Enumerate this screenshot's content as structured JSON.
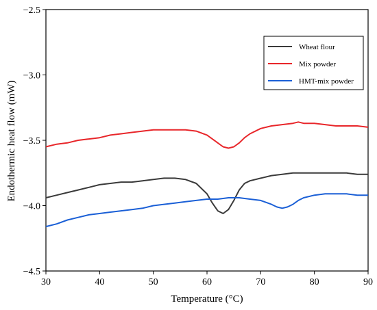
{
  "chart_data": {
    "type": "line",
    "title": "",
    "xlabel": "Temperature (°C)",
    "ylabel": "Endothermic heat flow (mW)",
    "xlim": [
      30,
      90
    ],
    "ylim": [
      -4.5,
      -2.5
    ],
    "xticks": [
      30,
      40,
      50,
      60,
      70,
      80,
      90
    ],
    "yticks": [
      -4.5,
      -4.0,
      -3.5,
      -3.0,
      -2.5
    ],
    "xtick_labels": [
      "30",
      "40",
      "50",
      "60",
      "70",
      "80",
      "90"
    ],
    "ytick_labels": [
      "−4.5",
      "−4.0",
      "−3.5",
      "−3.0",
      "−2.5"
    ],
    "grid": false,
    "legend_position": "top-right",
    "series": [
      {
        "name": "Wheat flour",
        "color": "#3a3a3a",
        "points": [
          [
            30,
            -3.94
          ],
          [
            32,
            -3.92
          ],
          [
            34,
            -3.9
          ],
          [
            36,
            -3.88
          ],
          [
            38,
            -3.86
          ],
          [
            40,
            -3.84
          ],
          [
            42,
            -3.83
          ],
          [
            44,
            -3.82
          ],
          [
            46,
            -3.82
          ],
          [
            48,
            -3.81
          ],
          [
            50,
            -3.8
          ],
          [
            52,
            -3.79
          ],
          [
            54,
            -3.79
          ],
          [
            56,
            -3.8
          ],
          [
            58,
            -3.83
          ],
          [
            60,
            -3.91
          ],
          [
            61,
            -3.98
          ],
          [
            62,
            -4.04
          ],
          [
            63,
            -4.06
          ],
          [
            64,
            -4.03
          ],
          [
            65,
            -3.96
          ],
          [
            66,
            -3.88
          ],
          [
            67,
            -3.83
          ],
          [
            68,
            -3.81
          ],
          [
            70,
            -3.79
          ],
          [
            72,
            -3.77
          ],
          [
            74,
            -3.76
          ],
          [
            76,
            -3.75
          ],
          [
            78,
            -3.75
          ],
          [
            80,
            -3.75
          ],
          [
            82,
            -3.75
          ],
          [
            84,
            -3.75
          ],
          [
            86,
            -3.75
          ],
          [
            88,
            -3.76
          ],
          [
            90,
            -3.76
          ]
        ]
      },
      {
        "name": "Mix powder",
        "color": "#e8262a",
        "points": [
          [
            30,
            -3.55
          ],
          [
            32,
            -3.53
          ],
          [
            34,
            -3.52
          ],
          [
            36,
            -3.5
          ],
          [
            38,
            -3.49
          ],
          [
            40,
            -3.48
          ],
          [
            42,
            -3.46
          ],
          [
            44,
            -3.45
          ],
          [
            46,
            -3.44
          ],
          [
            48,
            -3.43
          ],
          [
            50,
            -3.42
          ],
          [
            52,
            -3.42
          ],
          [
            54,
            -3.42
          ],
          [
            56,
            -3.42
          ],
          [
            58,
            -3.43
          ],
          [
            60,
            -3.46
          ],
          [
            61,
            -3.49
          ],
          [
            62,
            -3.52
          ],
          [
            63,
            -3.55
          ],
          [
            64,
            -3.56
          ],
          [
            65,
            -3.55
          ],
          [
            66,
            -3.52
          ],
          [
            67,
            -3.48
          ],
          [
            68,
            -3.45
          ],
          [
            70,
            -3.41
          ],
          [
            72,
            -3.39
          ],
          [
            74,
            -3.38
          ],
          [
            76,
            -3.37
          ],
          [
            77,
            -3.36
          ],
          [
            78,
            -3.37
          ],
          [
            79,
            -3.37
          ],
          [
            80,
            -3.37
          ],
          [
            82,
            -3.38
          ],
          [
            84,
            -3.39
          ],
          [
            86,
            -3.39
          ],
          [
            88,
            -3.39
          ],
          [
            90,
            -3.4
          ]
        ]
      },
      {
        "name": "HMT-mix powder",
        "color": "#1a5fd6",
        "points": [
          [
            30,
            -4.16
          ],
          [
            32,
            -4.14
          ],
          [
            34,
            -4.11
          ],
          [
            36,
            -4.09
          ],
          [
            38,
            -4.07
          ],
          [
            40,
            -4.06
          ],
          [
            42,
            -4.05
          ],
          [
            44,
            -4.04
          ],
          [
            46,
            -4.03
          ],
          [
            48,
            -4.02
          ],
          [
            50,
            -4.0
          ],
          [
            52,
            -3.99
          ],
          [
            54,
            -3.98
          ],
          [
            56,
            -3.97
          ],
          [
            58,
            -3.96
          ],
          [
            60,
            -3.95
          ],
          [
            62,
            -3.95
          ],
          [
            64,
            -3.94
          ],
          [
            66,
            -3.94
          ],
          [
            68,
            -3.95
          ],
          [
            70,
            -3.96
          ],
          [
            72,
            -3.99
          ],
          [
            73,
            -4.01
          ],
          [
            74,
            -4.02
          ],
          [
            75,
            -4.01
          ],
          [
            76,
            -3.99
          ],
          [
            77,
            -3.96
          ],
          [
            78,
            -3.94
          ],
          [
            80,
            -3.92
          ],
          [
            82,
            -3.91
          ],
          [
            84,
            -3.91
          ],
          [
            86,
            -3.91
          ],
          [
            88,
            -3.92
          ],
          [
            90,
            -3.92
          ]
        ]
      }
    ]
  }
}
